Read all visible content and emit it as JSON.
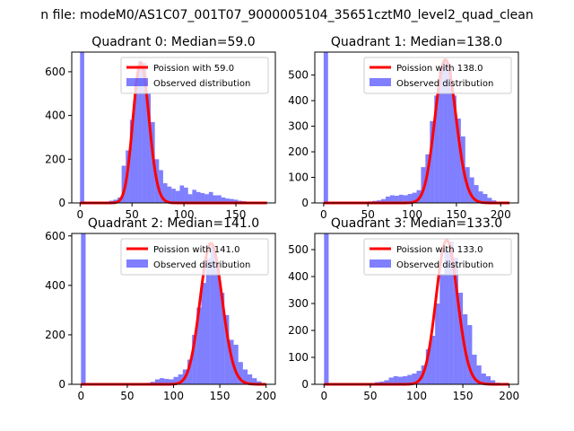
{
  "figure": {
    "suptitle": "n file: modeM0/AS1C07_001T07_9000005104_35651cztM0_level2_quad_clean"
  },
  "colors": {
    "poisson": "#ff0000",
    "observed": "#0000ff",
    "axes": "#000000"
  },
  "chart_data": [
    {
      "type": "bar",
      "title": "Quadrant 0: Median=59.0",
      "median": 59.0,
      "xlim": [
        -8,
        188
      ],
      "ylim": [
        0,
        690
      ],
      "xticks": [
        0,
        50,
        100,
        150
      ],
      "yticks": [
        0,
        200,
        400,
        600
      ],
      "bin_width": 4,
      "spike": {
        "x": 0,
        "value": 690
      },
      "hist_bins": [
        [
          20,
          3
        ],
        [
          24,
          5
        ],
        [
          28,
          10
        ],
        [
          32,
          15
        ],
        [
          36,
          25
        ],
        [
          40,
          170
        ],
        [
          44,
          240
        ],
        [
          48,
          380
        ],
        [
          52,
          550
        ],
        [
          56,
          650
        ],
        [
          60,
          640
        ],
        [
          64,
          500
        ],
        [
          68,
          370
        ],
        [
          72,
          200
        ],
        [
          76,
          150
        ],
        [
          80,
          90
        ],
        [
          84,
          75
        ],
        [
          88,
          65
        ],
        [
          92,
          55
        ],
        [
          96,
          80
        ],
        [
          100,
          70
        ],
        [
          104,
          40
        ],
        [
          108,
          60
        ],
        [
          112,
          50
        ],
        [
          116,
          45
        ],
        [
          120,
          40
        ],
        [
          124,
          50
        ],
        [
          128,
          35
        ],
        [
          132,
          35
        ],
        [
          136,
          25
        ],
        [
          140,
          20
        ],
        [
          144,
          18
        ],
        [
          148,
          15
        ],
        [
          152,
          10
        ],
        [
          156,
          8
        ],
        [
          160,
          6
        ],
        [
          164,
          4
        ],
        [
          168,
          3
        ],
        [
          172,
          2
        ],
        [
          176,
          1
        ]
      ],
      "fit": {
        "lambda": 59.0,
        "peak": 640,
        "xmin": 0,
        "xmax": 180
      },
      "legend": {
        "location": "top-right",
        "entries": [
          "Poission with 59.0",
          "Observed distribution"
        ]
      }
    },
    {
      "type": "bar",
      "title": "Quadrant 1: Median=138.0",
      "median": 138.0,
      "xlim": [
        -10,
        220
      ],
      "ylim": [
        0,
        590
      ],
      "xticks": [
        0,
        50,
        100,
        150,
        200
      ],
      "yticks": [
        0,
        100,
        200,
        300,
        400,
        500
      ],
      "bin_width": 5,
      "spike": {
        "x": 0,
        "value": 590
      },
      "hist_bins": [
        [
          10,
          2
        ],
        [
          15,
          2
        ],
        [
          20,
          3
        ],
        [
          25,
          3
        ],
        [
          30,
          4
        ],
        [
          35,
          4
        ],
        [
          40,
          5
        ],
        [
          45,
          5
        ],
        [
          50,
          6
        ],
        [
          55,
          8
        ],
        [
          60,
          10
        ],
        [
          65,
          15
        ],
        [
          70,
          25
        ],
        [
          75,
          30
        ],
        [
          80,
          28
        ],
        [
          85,
          32
        ],
        [
          90,
          30
        ],
        [
          95,
          35
        ],
        [
          100,
          40
        ],
        [
          105,
          50
        ],
        [
          110,
          140
        ],
        [
          115,
          190
        ],
        [
          120,
          320
        ],
        [
          125,
          420
        ],
        [
          130,
          520
        ],
        [
          135,
          560
        ],
        [
          140,
          530
        ],
        [
          145,
          420
        ],
        [
          150,
          330
        ],
        [
          155,
          260
        ],
        [
          160,
          140
        ],
        [
          165,
          100
        ],
        [
          170,
          70
        ],
        [
          175,
          45
        ],
        [
          180,
          35
        ],
        [
          185,
          20
        ],
        [
          190,
          10
        ],
        [
          195,
          5
        ],
        [
          200,
          3
        ]
      ],
      "fit": {
        "lambda": 138.0,
        "peak": 560,
        "xmin": 0,
        "xmax": 210
      },
      "legend": {
        "location": "top-right",
        "entries": [
          "Poission with 138.0",
          "Observed distribution"
        ]
      }
    },
    {
      "type": "bar",
      "title": "Quadrant 2: Median=141.0",
      "median": 141.0,
      "xlim": [
        -10,
        210
      ],
      "ylim": [
        0,
        610
      ],
      "xticks": [
        0,
        50,
        100,
        150,
        200
      ],
      "yticks": [
        0,
        200,
        400,
        600
      ],
      "bin_width": 5,
      "spike": {
        "x": 0,
        "value": 610
      },
      "hist_bins": [
        [
          20,
          2
        ],
        [
          30,
          2
        ],
        [
          40,
          3
        ],
        [
          50,
          3
        ],
        [
          60,
          4
        ],
        [
          70,
          6
        ],
        [
          75,
          10
        ],
        [
          80,
          20
        ],
        [
          85,
          25
        ],
        [
          90,
          22
        ],
        [
          95,
          20
        ],
        [
          100,
          30
        ],
        [
          105,
          40
        ],
        [
          110,
          60
        ],
        [
          115,
          100
        ],
        [
          120,
          200
        ],
        [
          125,
          310
        ],
        [
          130,
          410
        ],
        [
          135,
          510
        ],
        [
          140,
          560
        ],
        [
          145,
          490
        ],
        [
          150,
          370
        ],
        [
          155,
          280
        ],
        [
          160,
          180
        ],
        [
          165,
          160
        ],
        [
          170,
          90
        ],
        [
          175,
          60
        ],
        [
          180,
          40
        ],
        [
          185,
          25
        ],
        [
          190,
          12
        ],
        [
          195,
          5
        ],
        [
          200,
          2
        ]
      ],
      "fit": {
        "lambda": 141.0,
        "peak": 570,
        "xmin": 0,
        "xmax": 200
      },
      "legend": {
        "location": "top-right",
        "entries": [
          "Poission with 141.0",
          "Observed distribution"
        ]
      }
    },
    {
      "type": "bar",
      "title": "Quadrant 3: Median=133.0",
      "median": 133.0,
      "xlim": [
        -10,
        210
      ],
      "ylim": [
        0,
        560
      ],
      "xticks": [
        0,
        50,
        100,
        150,
        200
      ],
      "yticks": [
        0,
        100,
        200,
        300,
        400,
        500
      ],
      "bin_width": 5,
      "spike": {
        "x": 0,
        "value": 560
      },
      "hist_bins": [
        [
          20,
          2
        ],
        [
          30,
          3
        ],
        [
          40,
          4
        ],
        [
          50,
          5
        ],
        [
          55,
          8
        ],
        [
          60,
          10
        ],
        [
          65,
          15
        ],
        [
          70,
          25
        ],
        [
          75,
          30
        ],
        [
          80,
          28
        ],
        [
          85,
          30
        ],
        [
          90,
          35
        ],
        [
          95,
          40
        ],
        [
          100,
          50
        ],
        [
          105,
          70
        ],
        [
          110,
          130
        ],
        [
          115,
          180
        ],
        [
          120,
          300
        ],
        [
          125,
          410
        ],
        [
          130,
          500
        ],
        [
          135,
          530
        ],
        [
          140,
          470
        ],
        [
          145,
          340
        ],
        [
          150,
          260
        ],
        [
          155,
          220
        ],
        [
          160,
          110
        ],
        [
          165,
          70
        ],
        [
          170,
          40
        ],
        [
          175,
          30
        ],
        [
          180,
          15
        ],
        [
          185,
          6
        ],
        [
          190,
          3
        ]
      ],
      "fit": {
        "lambda": 133.0,
        "peak": 535,
        "xmin": 0,
        "xmax": 200
      },
      "legend": {
        "location": "top-right",
        "entries": [
          "Poission with 133.0",
          "Observed distribution"
        ]
      }
    }
  ]
}
